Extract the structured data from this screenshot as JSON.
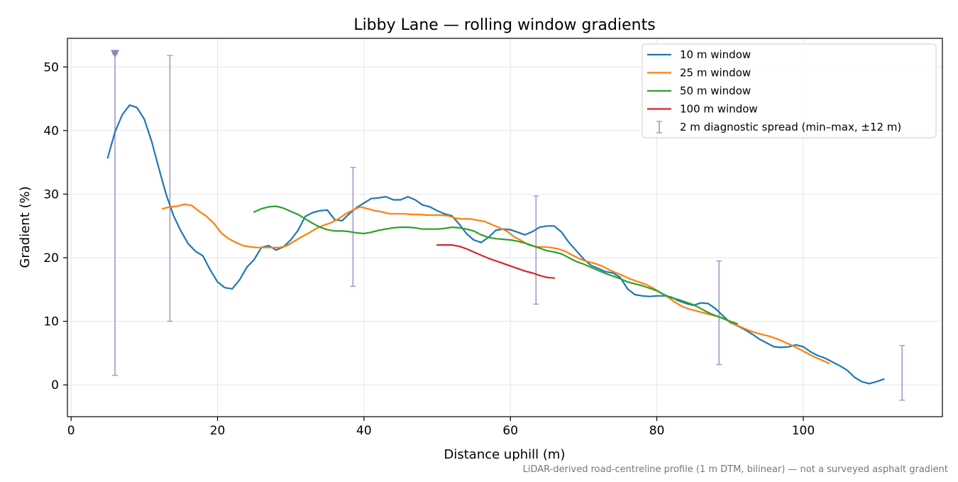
{
  "chart_data": {
    "type": "line",
    "title": "Libby Lane — rolling window gradients",
    "xlabel": "Distance uphill (m)",
    "ylabel": "Gradient (%)",
    "footnote": "LiDAR-derived road-centreline profile (1 m DTM, bilinear) — not a surveyed asphalt gradient",
    "xlim": [
      -0.5,
      119
    ],
    "ylim": [
      -5,
      54.5
    ],
    "xticks": [
      0,
      20,
      40,
      60,
      80,
      100
    ],
    "yticks": [
      0,
      10,
      20,
      30,
      40,
      50
    ],
    "grid": true,
    "legend_position": "top-right",
    "series": [
      {
        "name": "10 m window",
        "color": "#1f77b4",
        "x": [
          5,
          6,
          7,
          8,
          9,
          10,
          11,
          12,
          13,
          14,
          15,
          16,
          17,
          18,
          19,
          20,
          21,
          22,
          23,
          24,
          25,
          26,
          27,
          28,
          29,
          30,
          31,
          32,
          33,
          34,
          35,
          36,
          37,
          38,
          39,
          40,
          41,
          42,
          43,
          44,
          45,
          46,
          47,
          48,
          49,
          50,
          51,
          52,
          53,
          54,
          55,
          56,
          57,
          58,
          59,
          60,
          61,
          62,
          63,
          64,
          65,
          66,
          67,
          68,
          69,
          70,
          71,
          72,
          73,
          74,
          75,
          76,
          77,
          78,
          79,
          80,
          81,
          82,
          83,
          84,
          85,
          86,
          87,
          88,
          89,
          90,
          91,
          92,
          93,
          94,
          95,
          96,
          97,
          98,
          99,
          100,
          101,
          102,
          103,
          104,
          105,
          106,
          107,
          108,
          109,
          110,
          111
        ],
        "y": [
          35.7,
          39.8,
          42.5,
          44.0,
          43.6,
          41.8,
          38.3,
          34.0,
          29.9,
          26.6,
          24.2,
          22.2,
          21.0,
          20.3,
          18.1,
          16.2,
          15.3,
          15.1,
          16.5,
          18.5,
          19.7,
          21.6,
          21.9,
          21.2,
          21.7,
          22.8,
          24.3,
          26.5,
          27.1,
          27.4,
          27.5,
          26.0,
          25.8,
          26.9,
          27.9,
          28.6,
          29.3,
          29.4,
          29.6,
          29.1,
          29.1,
          29.6,
          29.1,
          28.3,
          28.0,
          27.4,
          26.9,
          26.6,
          25.3,
          23.8,
          22.8,
          22.4,
          23.2,
          24.3,
          24.5,
          24.4,
          24.0,
          23.6,
          24.1,
          24.8,
          25.0,
          25.0,
          24.0,
          22.4,
          21.1,
          19.8,
          18.8,
          18.3,
          17.8,
          17.6,
          16.9,
          15.1,
          14.2,
          14.0,
          13.9,
          14.0,
          14.0,
          13.8,
          13.2,
          12.8,
          12.5,
          12.9,
          12.8,
          12.0,
          10.9,
          9.8,
          9.3,
          8.7,
          8.0,
          7.2,
          6.6,
          6.0,
          5.9,
          6.0,
          6.3,
          6.0,
          5.2,
          4.6,
          4.2,
          3.6,
          3.0,
          2.3,
          1.2,
          0.5,
          0.2,
          0.5,
          0.9
        ]
      },
      {
        "name": "25 m window",
        "color": "#ff7f0e",
        "x": [
          12.5,
          13.5,
          14.5,
          15.5,
          16.5,
          17.5,
          18.5,
          19.5,
          20.5,
          21.5,
          22.5,
          23.5,
          24.5,
          25.5,
          26.5,
          27.5,
          28.5,
          29.5,
          30.5,
          31.5,
          32.5,
          33.5,
          34.5,
          35.5,
          36.5,
          37.5,
          38.5,
          39.5,
          40.5,
          41.5,
          42.5,
          43.5,
          44.5,
          45.5,
          46.5,
          47.5,
          48.5,
          49.5,
          50.5,
          51.5,
          52.5,
          53.5,
          54.5,
          55.5,
          56.5,
          57.5,
          58.5,
          59.5,
          60.5,
          61.5,
          62.5,
          63.5,
          64.5,
          65.5,
          66.5,
          67.5,
          68.5,
          69.5,
          70.5,
          71.5,
          72.5,
          73.5,
          74.5,
          75.5,
          76.5,
          77.5,
          78.5,
          79.5,
          80.5,
          81.5,
          82.5,
          83.5,
          84.5,
          85.5,
          86.5,
          87.5,
          88.5,
          89.5,
          90.5,
          91.5,
          92.5,
          93.5,
          94.5,
          95.5,
          96.5,
          97.5,
          98.5,
          99.5,
          100.5,
          101.5,
          102.5,
          103.5
        ],
        "y": [
          27.7,
          28.0,
          28.1,
          28.4,
          28.2,
          27.3,
          26.5,
          25.4,
          23.9,
          23.0,
          22.4,
          21.9,
          21.7,
          21.6,
          21.6,
          21.6,
          21.6,
          21.9,
          22.6,
          23.3,
          23.9,
          24.6,
          25.1,
          25.5,
          26.1,
          26.9,
          27.5,
          28.0,
          27.7,
          27.4,
          27.2,
          26.9,
          26.9,
          26.9,
          26.8,
          26.8,
          26.7,
          26.7,
          26.7,
          26.6,
          26.2,
          26.1,
          26.1,
          25.9,
          25.7,
          25.2,
          24.7,
          24.2,
          23.3,
          22.7,
          22.0,
          21.7,
          21.7,
          21.6,
          21.4,
          21.0,
          20.4,
          19.8,
          19.4,
          19.1,
          18.7,
          18.1,
          17.6,
          17.1,
          16.6,
          16.2,
          15.8,
          15.2,
          14.5,
          13.8,
          13.0,
          12.3,
          11.9,
          11.6,
          11.3,
          11.0,
          10.7,
          10.2,
          9.6,
          9.1,
          8.6,
          8.2,
          7.9,
          7.6,
          7.2,
          6.7,
          6.2,
          5.6,
          5.0,
          4.4,
          3.9,
          3.4
        ]
      },
      {
        "name": "50 m window",
        "color": "#2ca02c",
        "x": [
          25,
          26,
          27,
          28,
          29,
          30,
          31,
          32,
          33,
          34,
          35,
          36,
          37,
          38,
          39,
          40,
          41,
          42,
          43,
          44,
          45,
          46,
          47,
          48,
          49,
          50,
          51,
          52,
          53,
          54,
          55,
          56,
          57,
          58,
          59,
          60,
          61,
          62,
          63,
          64,
          65,
          66,
          67,
          68,
          69,
          70,
          71,
          72,
          73,
          74,
          75,
          76,
          77,
          78,
          79,
          80,
          81,
          82,
          83,
          84,
          85,
          86,
          87,
          88,
          89,
          90,
          91
        ],
        "y": [
          27.2,
          27.7,
          28.0,
          28.1,
          27.8,
          27.3,
          26.8,
          26.1,
          25.4,
          24.8,
          24.4,
          24.2,
          24.2,
          24.1,
          23.9,
          23.8,
          24.0,
          24.3,
          24.5,
          24.7,
          24.8,
          24.8,
          24.7,
          24.5,
          24.5,
          24.5,
          24.6,
          24.8,
          24.7,
          24.5,
          24.2,
          23.6,
          23.2,
          23.0,
          22.9,
          22.8,
          22.6,
          22.3,
          21.9,
          21.5,
          21.1,
          20.9,
          20.6,
          20.0,
          19.4,
          19.0,
          18.5,
          18.0,
          17.5,
          17.1,
          16.7,
          16.2,
          15.9,
          15.6,
          15.2,
          14.8,
          14.2,
          13.7,
          13.4,
          13.0,
          12.6,
          12.0,
          11.4,
          10.9,
          10.5,
          10.0,
          9.6
        ]
      },
      {
        "name": "100 m window",
        "color": "#d62728",
        "x": [
          50,
          51,
          52,
          53,
          54,
          55,
          56,
          57,
          58,
          59,
          60,
          61,
          62,
          63,
          64,
          65,
          66
        ],
        "y": [
          22.0,
          22.0,
          22.0,
          21.8,
          21.4,
          20.9,
          20.4,
          19.9,
          19.5,
          19.1,
          18.7,
          18.3,
          17.9,
          17.6,
          17.2,
          16.9,
          16.8
        ]
      }
    ],
    "diagnostic_spread": {
      "name": "2 m diagnostic spread (min–max, ±12 m)",
      "color": "#9e9ac8",
      "items": [
        {
          "x": 6,
          "low": 1.5,
          "high": 52.0,
          "clipped": true
        },
        {
          "x": 13.5,
          "low": 10.0,
          "high": 51.8
        },
        {
          "x": 38.5,
          "low": 15.5,
          "high": 34.2
        },
        {
          "x": 63.5,
          "low": 12.7,
          "high": 29.7
        },
        {
          "x": 88.5,
          "low": 3.2,
          "high": 19.5
        },
        {
          "x": 113.5,
          "low": -2.4,
          "high": 6.2
        }
      ]
    }
  }
}
